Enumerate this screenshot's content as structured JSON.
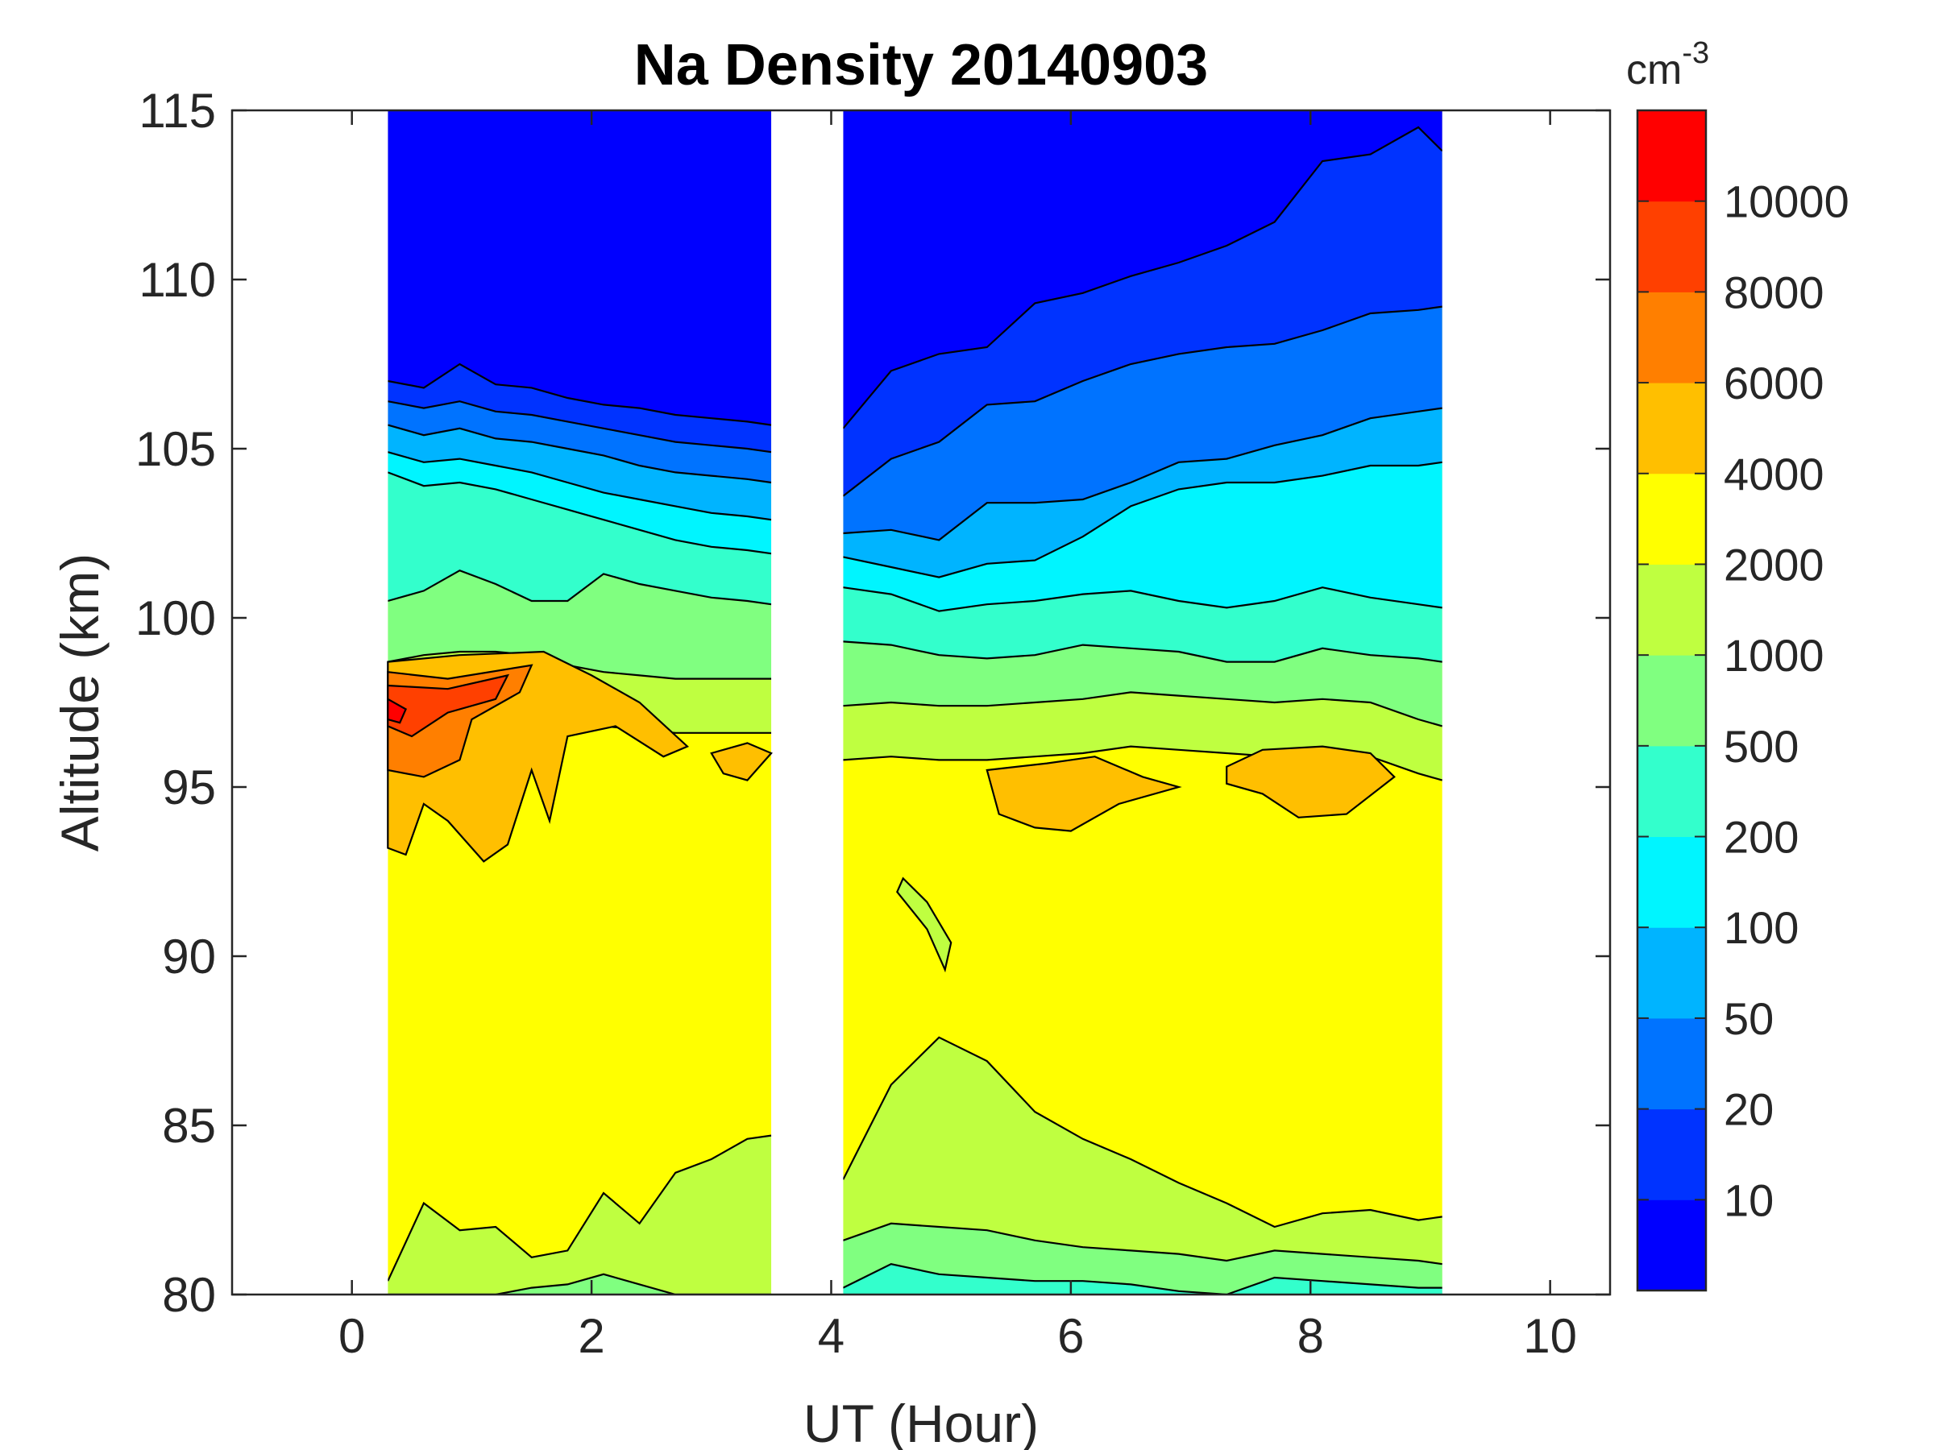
{
  "chart_data": {
    "type": "filled-contour",
    "title": "Na Density 20140903",
    "xlabel": "UT (Hour)",
    "ylabel": "Altitude (km)",
    "xlim": [
      -1,
      10.5
    ],
    "ylim": [
      80,
      115
    ],
    "xticks": [
      "0",
      "2",
      "4",
      "6",
      "8",
      "10"
    ],
    "yticks": [
      "80",
      "85",
      "90",
      "95",
      "100",
      "105",
      "110",
      "115"
    ],
    "colorbar": {
      "unit": "cm",
      "unit_exponent": "-3",
      "labels": [
        "10",
        "20",
        "50",
        "100",
        "200",
        "500",
        "1000",
        "2000",
        "4000",
        "6000",
        "8000",
        "10000"
      ],
      "colors": [
        "#0000FF",
        "#0033FF",
        "#0073FF",
        "#00B4FF",
        "#00F5FF",
        "#33FFCC",
        "#80FF80",
        "#BFFF40",
        "#FFFF00",
        "#FFBF00",
        "#FF7F00",
        "#FF4000",
        "#FF0000"
      ]
    },
    "data_segments": [
      {
        "x_start": 0.3,
        "x_end": 3.5
      },
      {
        "x_start": 4.1,
        "x_end": 9.1
      }
    ],
    "levels": {
      "background_level": 8,
      "note": "contour level index: 0=<10 (blue) ... 8=2000-4000 (yellow) ... 12=>10000 (red)"
    },
    "segment1_boundaries": {
      "x": [
        0.3,
        0.6,
        0.9,
        1.2,
        1.5,
        1.8,
        2.1,
        2.4,
        2.7,
        3.0,
        3.3,
        3.5
      ],
      "bounds_altitude_km": [
        [
          107.0,
          106.8,
          107.5,
          106.9,
          106.8,
          106.5,
          106.3,
          106.2,
          106.0,
          105.9,
          105.8,
          105.7
        ],
        [
          106.4,
          106.2,
          106.4,
          106.1,
          106.0,
          105.8,
          105.6,
          105.4,
          105.2,
          105.1,
          105.0,
          104.9
        ],
        [
          105.7,
          105.4,
          105.6,
          105.3,
          105.2,
          105.0,
          104.8,
          104.5,
          104.3,
          104.2,
          104.1,
          104.0
        ],
        [
          104.9,
          104.6,
          104.7,
          104.5,
          104.3,
          104.0,
          103.7,
          103.5,
          103.3,
          103.1,
          103.0,
          102.9
        ],
        [
          104.3,
          103.9,
          104.0,
          103.8,
          103.5,
          103.2,
          102.9,
          102.6,
          102.3,
          102.1,
          102.0,
          101.9
        ],
        [
          100.5,
          100.8,
          101.4,
          101.0,
          100.5,
          100.5,
          101.3,
          101.0,
          100.8,
          100.6,
          100.5,
          100.4
        ],
        [
          98.7,
          98.9,
          99.0,
          99.0,
          98.9,
          98.6,
          98.4,
          98.3,
          98.2,
          98.2,
          98.2,
          98.2
        ]
      ]
    },
    "segment2_boundaries": {
      "x": [
        4.1,
        4.5,
        4.9,
        5.3,
        5.7,
        6.1,
        6.5,
        6.9,
        7.3,
        7.7,
        8.1,
        8.5,
        8.9,
        9.1
      ],
      "bounds_altitude_km": [
        [
          105.6,
          107.3,
          107.8,
          108.0,
          109.3,
          109.6,
          110.1,
          110.5,
          111.0,
          111.7,
          113.5,
          113.7,
          114.5,
          113.8
        ],
        [
          103.6,
          104.7,
          105.2,
          106.3,
          106.4,
          107.0,
          107.5,
          107.8,
          108.0,
          108.1,
          108.5,
          109.0,
          109.1,
          109.2
        ],
        [
          102.5,
          102.6,
          102.3,
          103.4,
          103.4,
          103.5,
          104.0,
          104.6,
          104.7,
          105.1,
          105.4,
          105.9,
          106.1,
          106.2
        ],
        [
          101.8,
          101.5,
          101.2,
          101.6,
          101.7,
          102.4,
          103.3,
          103.8,
          104.0,
          104.0,
          104.2,
          104.5,
          104.5,
          104.6
        ],
        [
          100.9,
          100.7,
          100.2,
          100.4,
          100.5,
          100.7,
          100.8,
          100.5,
          100.3,
          100.5,
          100.9,
          100.6,
          100.4,
          100.3
        ],
        [
          99.3,
          99.2,
          98.9,
          98.8,
          98.9,
          99.2,
          99.1,
          99.0,
          98.7,
          98.7,
          99.1,
          98.9,
          98.8,
          98.7
        ],
        [
          97.4,
          97.5,
          97.4,
          97.4,
          97.5,
          97.6,
          97.8,
          97.7,
          97.6,
          97.5,
          97.6,
          97.5,
          97.0,
          96.8
        ]
      ]
    },
    "segment1_bottom": {
      "x": [
        0.3,
        0.6,
        0.9,
        1.2,
        1.5,
        1.8,
        2.1,
        2.4,
        2.7,
        3.0,
        3.3,
        3.5
      ],
      "green_top_km": [
        80.4,
        82.7,
        81.9,
        82.0,
        81.1,
        81.3,
        83.0,
        82.1,
        83.6,
        84.0,
        84.6,
        84.7
      ],
      "mid_green_top_km": [
        80.0,
        80.0,
        80.0,
        80.0,
        80.2,
        80.3,
        80.6,
        80.3,
        80.0,
        80.0,
        80.0,
        80.0
      ]
    },
    "segment2_bottom": {
      "x": [
        4.1,
        4.5,
        4.9,
        5.3,
        5.7,
        6.1,
        6.5,
        6.9,
        7.3,
        7.7,
        8.1,
        8.5,
        8.9,
        9.1
      ],
      "lime_top_km": [
        83.4,
        86.2,
        87.6,
        86.9,
        85.4,
        84.6,
        84.0,
        83.3,
        82.7,
        82.0,
        82.4,
        82.5,
        82.2,
        82.3
      ],
      "green_top_km": [
        81.6,
        82.1,
        82.0,
        81.9,
        81.6,
        81.4,
        81.3,
        81.2,
        81.0,
        81.3,
        81.2,
        81.1,
        81.0,
        80.9
      ],
      "teal_top_km": [
        80.2,
        80.9,
        80.6,
        80.5,
        80.4,
        80.4,
        80.3,
        80.1,
        80.0,
        80.5,
        80.4,
        80.3,
        80.2,
        80.2
      ]
    }
  }
}
